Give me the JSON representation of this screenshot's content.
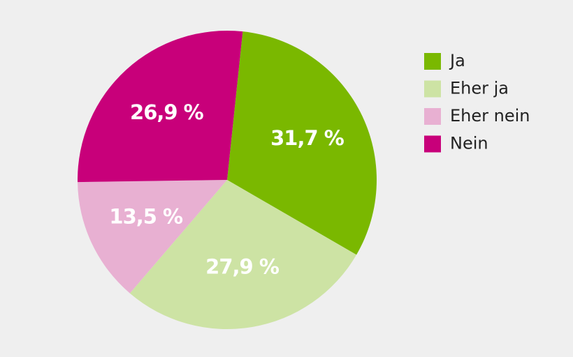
{
  "chart_data": {
    "type": "pie",
    "categories": [
      "Ja",
      "Eher ja",
      "Eher nein",
      "Nein"
    ],
    "values": [
      31.7,
      27.9,
      13.5,
      26.9
    ],
    "value_labels": [
      "31,7 %",
      "27,9 %",
      "13,5 %",
      "26,9 %"
    ],
    "colors": [
      "#7ab800",
      "#cde3a4",
      "#e8b0d2",
      "#c8007a"
    ],
    "legend": "right"
  }
}
